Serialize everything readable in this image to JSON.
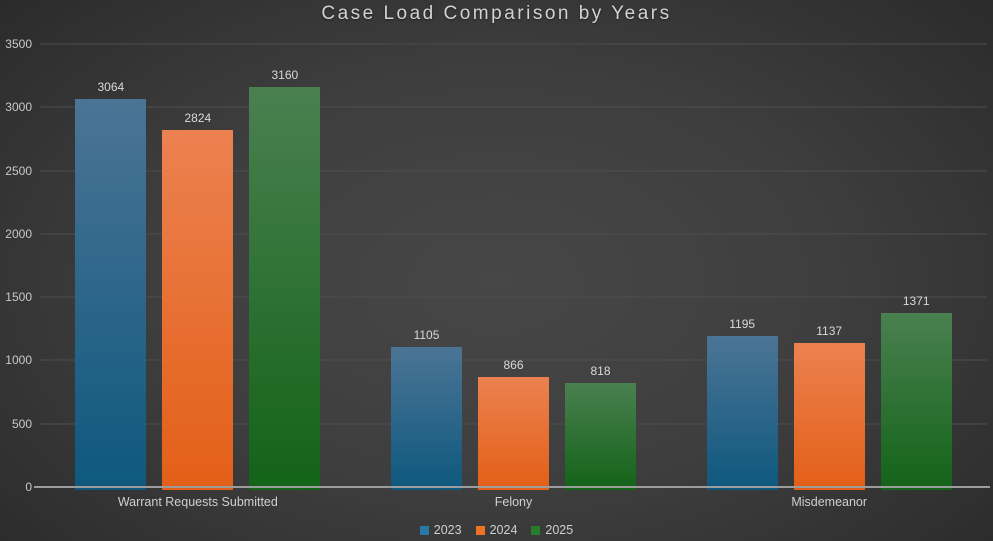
{
  "chart_data": {
    "type": "bar",
    "title": "Case Load Comparison by Years",
    "categories": [
      "Warrant Requests Submitted",
      "Felony",
      "Misdemeanor"
    ],
    "series": [
      {
        "name": "2023",
        "color": "#2879a8",
        "gradient": [
          "#4b7495",
          "#0e587e"
        ],
        "values": [
          3064,
          1105,
          1195
        ]
      },
      {
        "name": "2024",
        "color": "#ed7224",
        "gradient": [
          "#ec8150",
          "#e35f17"
        ],
        "values": [
          2824,
          866,
          1137
        ]
      },
      {
        "name": "2025",
        "color": "#267d2b",
        "gradient": [
          "#4a8050",
          "#136318"
        ],
        "values": [
          3160,
          818,
          1371
        ]
      }
    ],
    "ylim": [
      0,
      3500
    ],
    "yticks": [
      0,
      500,
      1000,
      1500,
      2000,
      2500,
      3000,
      3500
    ],
    "grid": true,
    "data_labels": true,
    "legend_position": "bottom",
    "colors": {
      "background_center": "#474747",
      "background_edge": "#252525",
      "gridline": "#4e4e4e",
      "axis_line": "#9c9c9c",
      "text": "#d2d2d2"
    }
  }
}
